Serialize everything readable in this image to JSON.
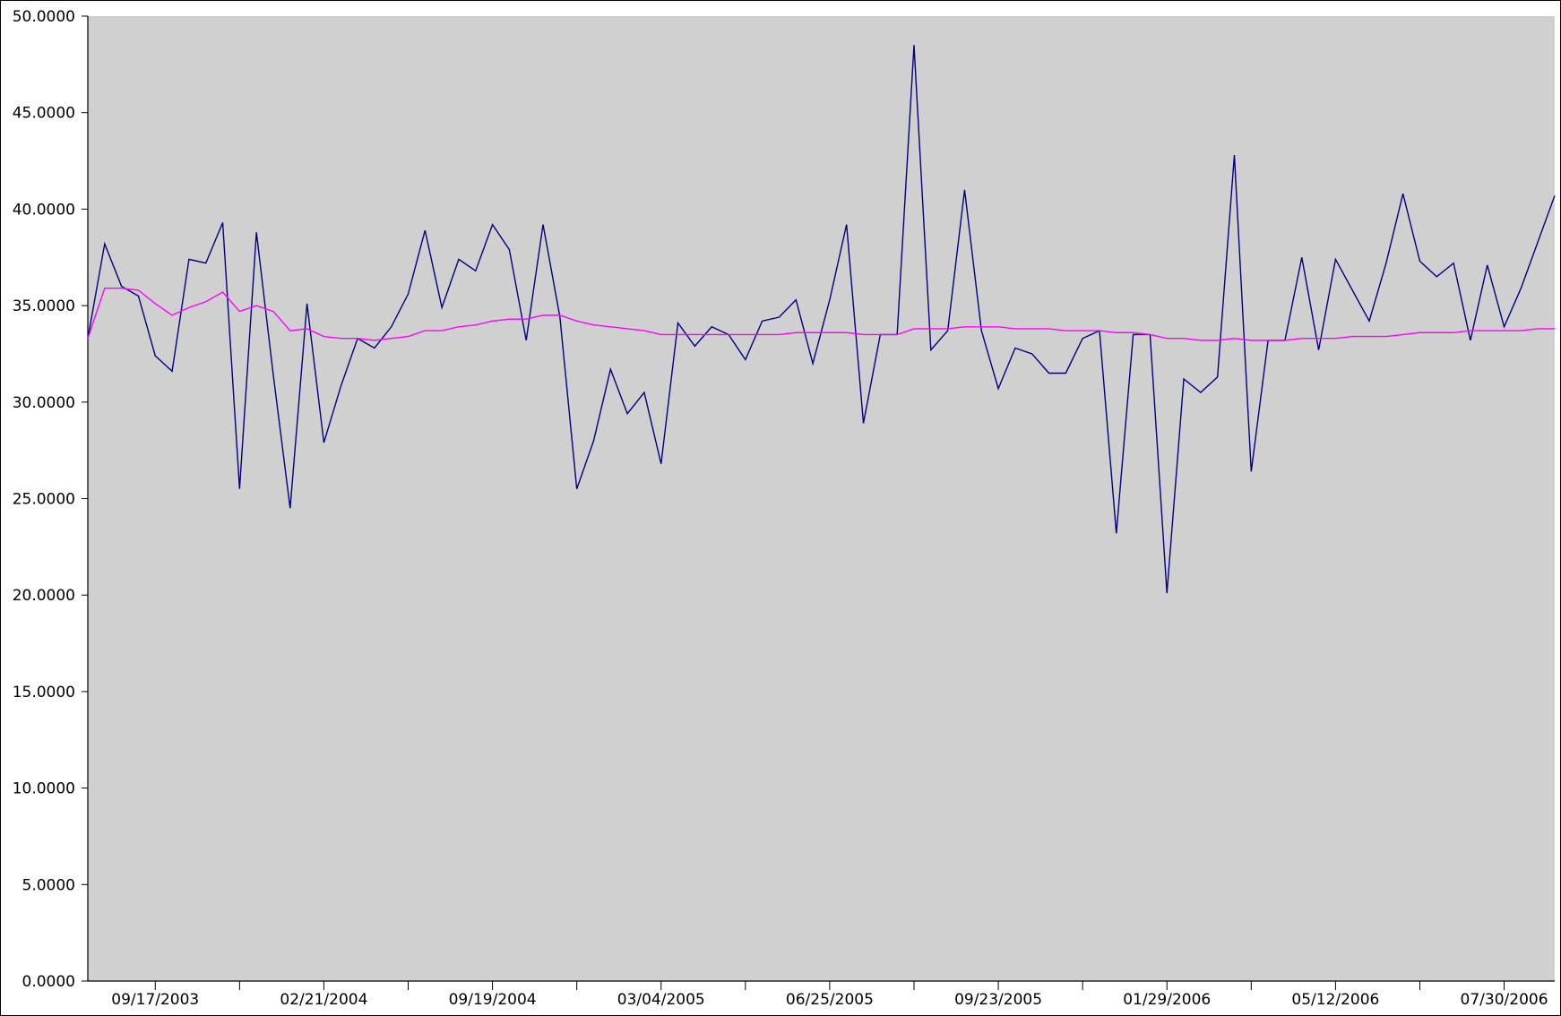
{
  "chart_data": {
    "type": "line",
    "title": "",
    "xlabel": "",
    "ylabel": "",
    "ylim": [
      0,
      50
    ],
    "y_ticks": [
      0,
      5,
      10,
      15,
      20,
      25,
      30,
      35,
      40,
      45,
      50
    ],
    "y_tick_format_decimals": 4,
    "x_tick_labels": [
      "09/17/2003",
      "02/21/2004",
      "09/19/2004",
      "03/04/2005",
      "06/25/2005",
      "09/23/2005",
      "01/29/2006",
      "05/12/2006",
      "07/30/2006"
    ],
    "x_tick_label_positions": [
      4,
      14,
      24,
      34,
      44,
      54,
      64,
      74,
      84
    ],
    "x_count": 88,
    "grid": false,
    "legend": "none",
    "plot_background": "#d0d0d0",
    "series": [
      {
        "color": "#000080",
        "values": [
          33.3,
          38.2,
          36.0,
          35.5,
          32.4,
          31.6,
          37.4,
          37.2,
          39.3,
          25.5,
          38.8,
          31.4,
          24.5,
          35.1,
          27.9,
          30.8,
          33.3,
          32.8,
          33.9,
          35.6,
          38.9,
          34.9,
          37.4,
          36.8,
          39.2,
          37.9,
          33.2,
          39.2,
          34.4,
          25.5,
          28.0,
          31.7,
          29.4,
          30.5,
          26.8,
          34.1,
          32.9,
          33.9,
          33.5,
          32.2,
          34.2,
          34.4,
          35.3,
          32.0,
          35.3,
          39.2,
          28.9,
          33.5,
          33.5,
          48.5,
          32.7,
          33.7,
          41.0,
          33.7,
          30.7,
          32.8,
          32.5,
          31.5,
          31.5,
          33.3,
          33.7,
          23.2,
          33.5,
          33.5,
          20.1,
          31.2,
          30.5,
          31.3,
          42.8,
          26.4,
          33.2,
          33.2,
          37.5,
          32.7,
          37.4,
          35.8,
          34.2,
          37.2,
          40.8,
          37.3,
          36.5,
          37.2,
          33.2,
          37.1,
          33.9,
          35.9,
          38.3,
          40.7
        ]
      },
      {
        "color": "#ff00ff",
        "values": [
          33.3,
          35.9,
          35.9,
          35.8,
          35.1,
          34.5,
          34.9,
          35.2,
          35.7,
          34.7,
          35.0,
          34.7,
          33.7,
          33.8,
          33.4,
          33.3,
          33.3,
          33.2,
          33.3,
          33.4,
          33.7,
          33.7,
          33.9,
          34.0,
          34.2,
          34.3,
          34.3,
          34.5,
          34.5,
          34.2,
          34.0,
          33.9,
          33.8,
          33.7,
          33.5,
          33.5,
          33.5,
          33.5,
          33.5,
          33.5,
          33.5,
          33.5,
          33.6,
          33.6,
          33.6,
          33.6,
          33.5,
          33.5,
          33.5,
          33.8,
          33.8,
          33.8,
          33.9,
          33.9,
          33.9,
          33.8,
          33.8,
          33.8,
          33.7,
          33.7,
          33.7,
          33.6,
          33.6,
          33.5,
          33.3,
          33.3,
          33.2,
          33.2,
          33.3,
          33.2,
          33.2,
          33.2,
          33.3,
          33.3,
          33.3,
          33.4,
          33.4,
          33.4,
          33.5,
          33.6,
          33.6,
          33.6,
          33.7,
          33.7,
          33.7,
          33.7,
          33.8,
          33.8
        ]
      }
    ]
  }
}
